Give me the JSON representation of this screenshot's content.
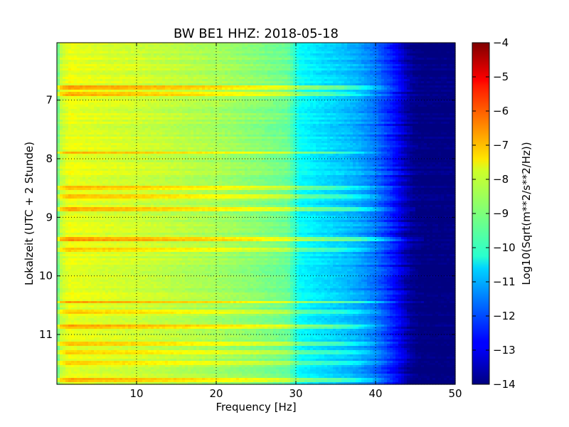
{
  "chart_data": {
    "type": "heatmap",
    "title": "BW BE1 HHZ: 2018-05-18",
    "xlabel": "Frequency [Hz]",
    "ylabel": "Lokalzeit (UTC + 2 Stunde)",
    "colorbar_label": "Log10(Sqrt(m**2/s**2/Hz))",
    "xlim": [
      0,
      50
    ],
    "ylim": [
      11.85,
      6.02
    ],
    "y_inverted": true,
    "x_ticks": [
      10,
      20,
      30,
      40,
      50
    ],
    "x_tick_labels": [
      "10",
      "20",
      "30",
      "40",
      "50"
    ],
    "y_ticks": [
      7,
      8,
      9,
      10,
      11
    ],
    "y_tick_labels": [
      "7",
      "8",
      "9",
      "10",
      "11"
    ],
    "clim": [
      -14,
      -4
    ],
    "colorbar_ticks": [
      -4,
      -5,
      -6,
      -7,
      -8,
      -9,
      -10,
      -11,
      -12,
      -13,
      -14
    ],
    "colorbar_tick_labels": [
      "−4",
      "−5",
      "−6",
      "−7",
      "−8",
      "−9",
      "−10",
      "−11",
      "−12",
      "−13",
      "−14"
    ],
    "colormap": "jet",
    "grid": true,
    "grid_style": "dotted",
    "frequency_profile": {
      "freq_hz": [
        0,
        0.4,
        1.5,
        3,
        6,
        10,
        15,
        20,
        25,
        29,
        30.5,
        33,
        36,
        38,
        40,
        41.5,
        43,
        44,
        45,
        46,
        50
      ],
      "value": [
        -9.6,
        -8.4,
        -7.9,
        -8.0,
        -8.1,
        -8.2,
        -8.4,
        -8.6,
        -8.9,
        -9.2,
        -10.2,
        -10.5,
        -10.8,
        -11.1,
        -11.6,
        -12.2,
        -12.9,
        -13.6,
        -13.9,
        -14.0,
        -14.0
      ]
    },
    "bright_bands": [
      {
        "time_h": 6.78,
        "delta": 1.1,
        "max_freq_hz": 44
      },
      {
        "time_h": 6.88,
        "delta": 0.9,
        "max_freq_hz": 42
      },
      {
        "time_h": 7.9,
        "delta": 1.0,
        "max_freq_hz": 43
      },
      {
        "time_h": 8.5,
        "delta": 0.8,
        "max_freq_hz": 42
      },
      {
        "time_h": 8.65,
        "delta": 0.7,
        "max_freq_hz": 44
      },
      {
        "time_h": 8.85,
        "delta": 1.0,
        "max_freq_hz": 45
      },
      {
        "time_h": 9.38,
        "delta": 1.2,
        "max_freq_hz": 46
      },
      {
        "time_h": 9.55,
        "delta": 0.8,
        "max_freq_hz": 43
      },
      {
        "time_h": 10.45,
        "delta": 1.1,
        "max_freq_hz": 46
      },
      {
        "time_h": 10.6,
        "delta": 0.7,
        "max_freq_hz": 44
      },
      {
        "time_h": 10.88,
        "delta": 1.0,
        "max_freq_hz": 44
      },
      {
        "time_h": 11.17,
        "delta": 0.8,
        "max_freq_hz": 43
      },
      {
        "time_h": 11.3,
        "delta": 0.7,
        "max_freq_hz": 44
      },
      {
        "time_h": 11.48,
        "delta": 0.6,
        "max_freq_hz": 44
      },
      {
        "time_h": 11.78,
        "delta": 1.0,
        "max_freq_hz": 44
      }
    ]
  }
}
